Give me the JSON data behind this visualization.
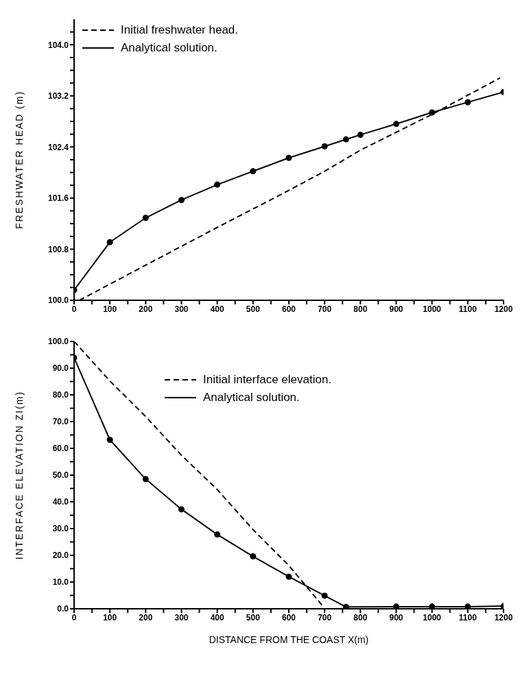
{
  "chart_data": [
    {
      "type": "line",
      "ylabel": "FRESHWATER HEAD (m)",
      "legend": "top left",
      "grid": false,
      "xlim": [
        0,
        1200
      ],
      "ylim": [
        100.0,
        104.4
      ],
      "xticks": [
        0,
        {
          "value": 50,
          "label": null
        },
        100,
        {
          "value": 150,
          "label": null
        },
        200,
        {
          "value": 250,
          "label": null
        },
        300,
        {
          "value": 350,
          "label": null
        },
        400,
        {
          "value": 450,
          "label": null
        },
        500,
        {
          "value": 550,
          "label": null
        },
        600,
        {
          "value": 650,
          "label": null
        },
        700,
        {
          "value": 750,
          "label": null
        },
        800,
        {
          "value": 850,
          "label": null
        },
        900,
        {
          "value": 950,
          "label": null
        },
        1000,
        {
          "value": 1050,
          "label": null
        },
        1100,
        {
          "value": 1150,
          "label": null
        },
        1200
      ],
      "yticks": [
        {
          "value": 100.0,
          "label": "100.0"
        },
        {
          "value": 100.2,
          "label": null
        },
        {
          "value": 100.4,
          "label": null
        },
        {
          "value": 100.6,
          "label": null
        },
        {
          "value": 100.8,
          "label": "100.8"
        },
        {
          "value": 101.0,
          "label": null
        },
        {
          "value": 101.2,
          "label": null
        },
        {
          "value": 101.4,
          "label": null
        },
        {
          "value": 101.6,
          "label": "101.6"
        },
        {
          "value": 101.8,
          "label": null
        },
        {
          "value": 102.0,
          "label": null
        },
        {
          "value": 102.2,
          "label": null
        },
        {
          "value": 102.4,
          "label": "102.4"
        },
        {
          "value": 102.6,
          "label": null
        },
        {
          "value": 102.8,
          "label": null
        },
        {
          "value": 103.0,
          "label": null
        },
        {
          "value": 103.2,
          "label": "103.2"
        },
        {
          "value": 103.4,
          "label": null
        },
        {
          "value": 103.6,
          "label": null
        },
        {
          "value": 103.8,
          "label": null
        },
        {
          "value": 104.0,
          "label": "104.0"
        },
        {
          "value": 104.2,
          "label": null
        }
      ],
      "series": [
        {
          "name": "Initial freshwater head.",
          "color": "#000000",
          "line_style": "dashed",
          "marker": "none",
          "x": [
            15,
            200,
            400,
            600,
            700,
            800,
            1000,
            1190
          ],
          "values": [
            100.0,
            100.55,
            101.14,
            101.72,
            102.02,
            102.35,
            102.91,
            103.48
          ]
        },
        {
          "type": "scatter",
          "color": "#000000",
          "marker": "circle",
          "x": [
            0,
            100,
            200,
            300,
            400,
            500,
            600,
            700,
            760,
            800,
            900,
            1000,
            1100,
            1200
          ],
          "values": [
            100.16,
            100.91,
            101.29,
            101.57,
            101.81,
            102.02,
            102.23,
            102.41,
            102.52,
            102.59,
            102.76,
            102.94,
            103.1,
            103.26
          ]
        },
        {
          "name": "Analytical solution.",
          "color": "#000000",
          "line_style": "solid",
          "marker": "none",
          "x": [
            0,
            100,
            200,
            300,
            400,
            500,
            600,
            700,
            760,
            800,
            900,
            1000,
            1100,
            1200
          ],
          "values": [
            100.16,
            100.91,
            101.29,
            101.57,
            101.81,
            102.02,
            102.23,
            102.41,
            102.52,
            102.59,
            102.76,
            102.94,
            103.1,
            103.26
          ]
        }
      ]
    },
    {
      "type": "line",
      "xlabel": "DISTANCE FROM THE COAST        X(m)",
      "ylabel": "INTERFACE ELEVATION  ZI(m)",
      "legend": "top",
      "grid": false,
      "xlim": [
        0,
        1200
      ],
      "ylim": [
        0,
        100
      ],
      "xticks": [
        0,
        {
          "value": 50,
          "label": null
        },
        100,
        {
          "value": 150,
          "label": null
        },
        200,
        {
          "value": 250,
          "label": null
        },
        300,
        {
          "value": 350,
          "label": null
        },
        400,
        {
          "value": 450,
          "label": null
        },
        500,
        {
          "value": 550,
          "label": null
        },
        600,
        {
          "value": 650,
          "label": null
        },
        700,
        {
          "value": 750,
          "label": null
        },
        800,
        {
          "value": 850,
          "label": null
        },
        900,
        {
          "value": 950,
          "label": null
        },
        1000,
        {
          "value": 1050,
          "label": null
        },
        1100,
        {
          "value": 1150,
          "label": null
        },
        1200
      ],
      "yticks": [
        {
          "value": 0,
          "label": "0.0"
        },
        {
          "value": 5,
          "label": null
        },
        {
          "value": 10,
          "label": "10.0"
        },
        {
          "value": 15,
          "label": null
        },
        {
          "value": 20,
          "label": "20.0"
        },
        {
          "value": 25,
          "label": null
        },
        {
          "value": 30,
          "label": "30.0"
        },
        {
          "value": 35,
          "label": null
        },
        {
          "value": 40,
          "label": "40.0"
        },
        {
          "value": 45,
          "label": null
        },
        {
          "value": 50,
          "label": "50.0"
        },
        {
          "value": 55,
          "label": null
        },
        {
          "value": 60,
          "label": "60.0"
        },
        {
          "value": 65,
          "label": null
        },
        {
          "value": 70,
          "label": "70.0"
        },
        {
          "value": 75,
          "label": null
        },
        {
          "value": 80,
          "label": "80.0"
        },
        {
          "value": 85,
          "label": null
        },
        {
          "value": 90,
          "label": "90.0"
        },
        {
          "value": 95,
          "label": null
        },
        {
          "value": 100,
          "label": "100.0"
        }
      ],
      "series": [
        {
          "name": "Initial interface elevation.",
          "color": "#000000",
          "line_style": "dashed",
          "marker": "none",
          "x": [
            0,
            100,
            200,
            300,
            400,
            500,
            600,
            695
          ],
          "values": [
            100,
            85.2,
            71.9,
            57.4,
            44.6,
            29.6,
            16.2,
            1
          ]
        },
        {
          "type": "scatter",
          "color": "#000000",
          "marker": "circle",
          "x": [
            0,
            100,
            200,
            300,
            400,
            500,
            600,
            700,
            760,
            900,
            1000,
            1100,
            1200
          ],
          "values": [
            93.9,
            63.2,
            48.5,
            37.2,
            27.8,
            19.6,
            12.0,
            4.9,
            0.7,
            0.8,
            0.8,
            0.8,
            1.0
          ]
        },
        {
          "name": "Analytical solution.",
          "color": "#000000",
          "line_style": "solid",
          "marker": "none",
          "x": [
            0,
            100,
            200,
            300,
            400,
            500,
            600,
            700,
            760,
            900,
            1000,
            1100,
            1200
          ],
          "values": [
            93.9,
            63.2,
            48.5,
            37.2,
            27.8,
            19.6,
            12.0,
            4.9,
            0.7,
            0.8,
            0.8,
            0.8,
            1.0
          ]
        }
      ]
    }
  ]
}
